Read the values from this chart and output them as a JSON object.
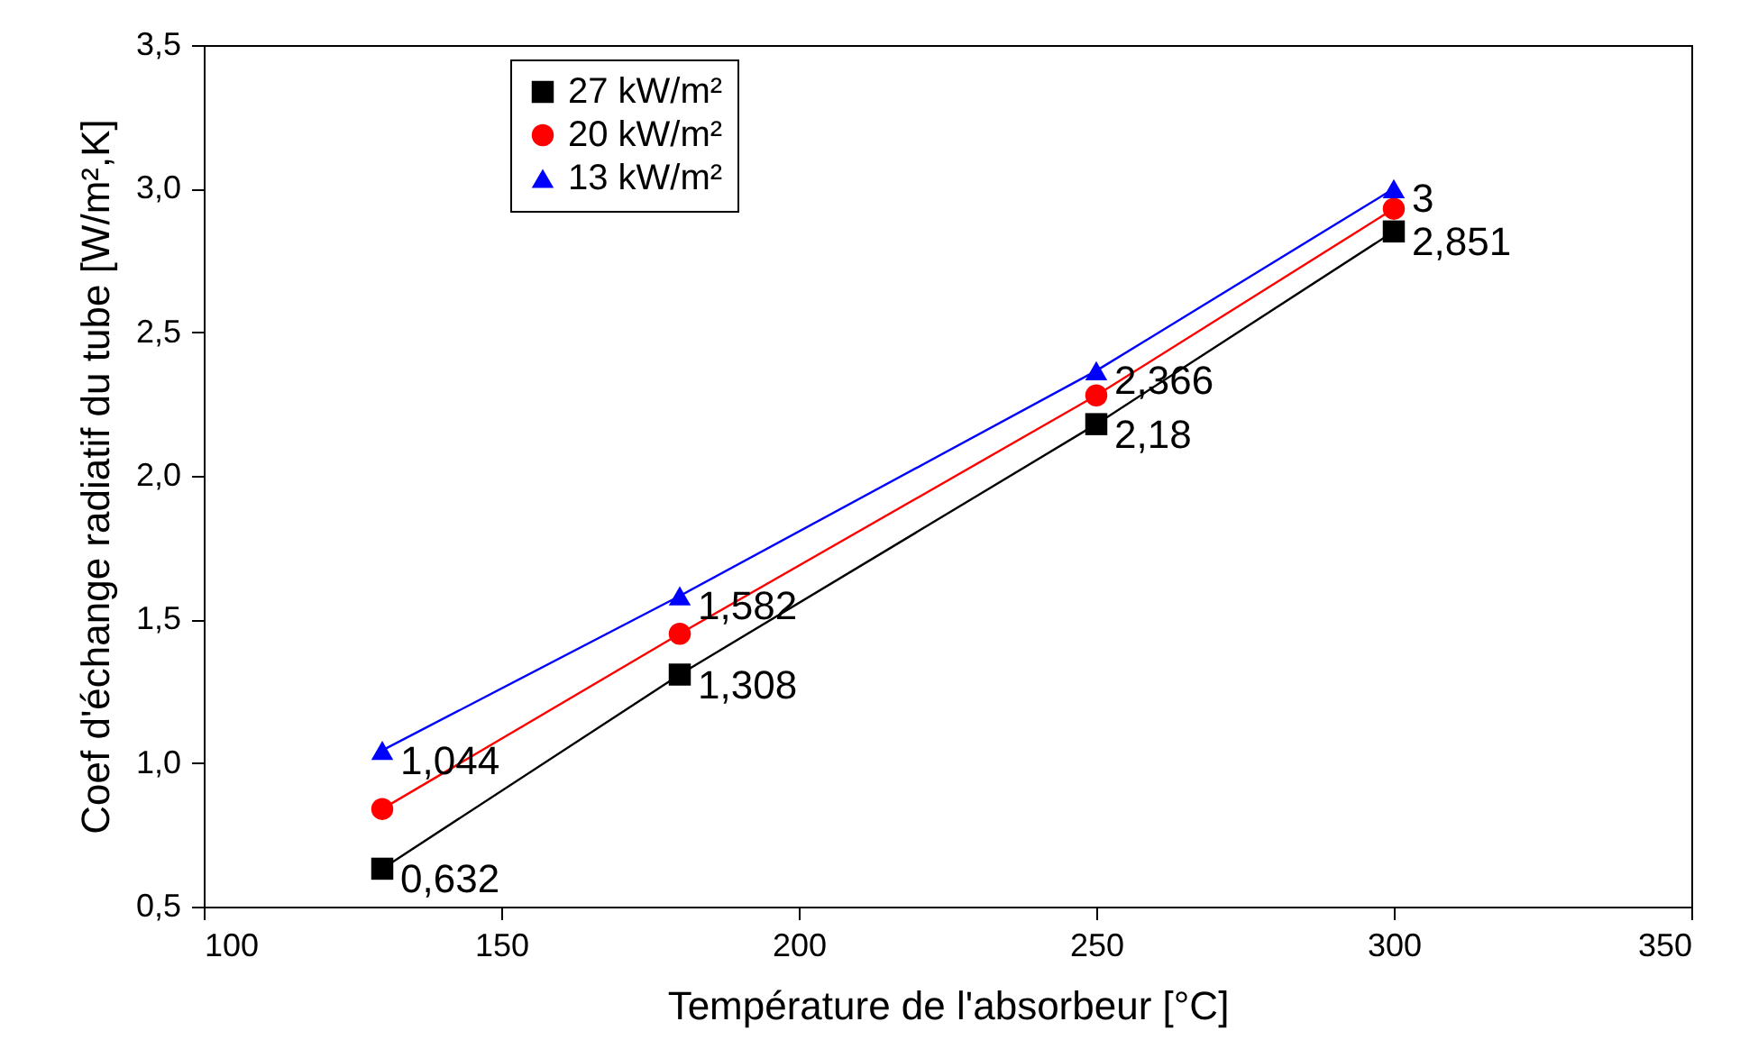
{
  "chart_data": {
    "type": "line",
    "xlabel": "Température de l'absorbeur [°C]",
    "ylabel": "Coef d'échange radiatif du tube [W/m²,K]",
    "x": [
      130,
      180,
      250,
      300
    ],
    "series": [
      {
        "name": "27 kW/m²",
        "color": "#000000",
        "marker": "square",
        "values": [
          0.632,
          1.308,
          2.18,
          2.851
        ],
        "value_labels": [
          "0,632",
          "1,308",
          "2,18",
          "2,851"
        ]
      },
      {
        "name": "20 kW/m²",
        "color": "#ff0000",
        "marker": "circle",
        "values": [
          0.84,
          1.45,
          2.28,
          2.93
        ]
      },
      {
        "name": "13 kW/m²",
        "color": "#0000ff",
        "marker": "triangle",
        "values": [
          1.044,
          1.582,
          2.366,
          3
        ],
        "value_labels": [
          "1,044",
          "1,582",
          "2,366",
          "3"
        ]
      }
    ],
    "xlim": [
      100,
      350
    ],
    "xticks": [
      100,
      150,
      200,
      250,
      300,
      350
    ],
    "ylim": [
      0.5,
      3.5
    ],
    "yticks": [
      {
        "value": 0.5,
        "label": "0,5"
      },
      {
        "value": 1,
        "label": "1,0"
      },
      {
        "value": 1.5,
        "label": "1,5"
      },
      {
        "value": 2,
        "label": "2,0"
      },
      {
        "value": 2.5,
        "label": "2,5"
      },
      {
        "value": 3,
        "label": "3,0"
      },
      {
        "value": 3.5,
        "label": "3,5"
      }
    ],
    "legend": "top left",
    "grid": false,
    "line_style": "solid"
  }
}
